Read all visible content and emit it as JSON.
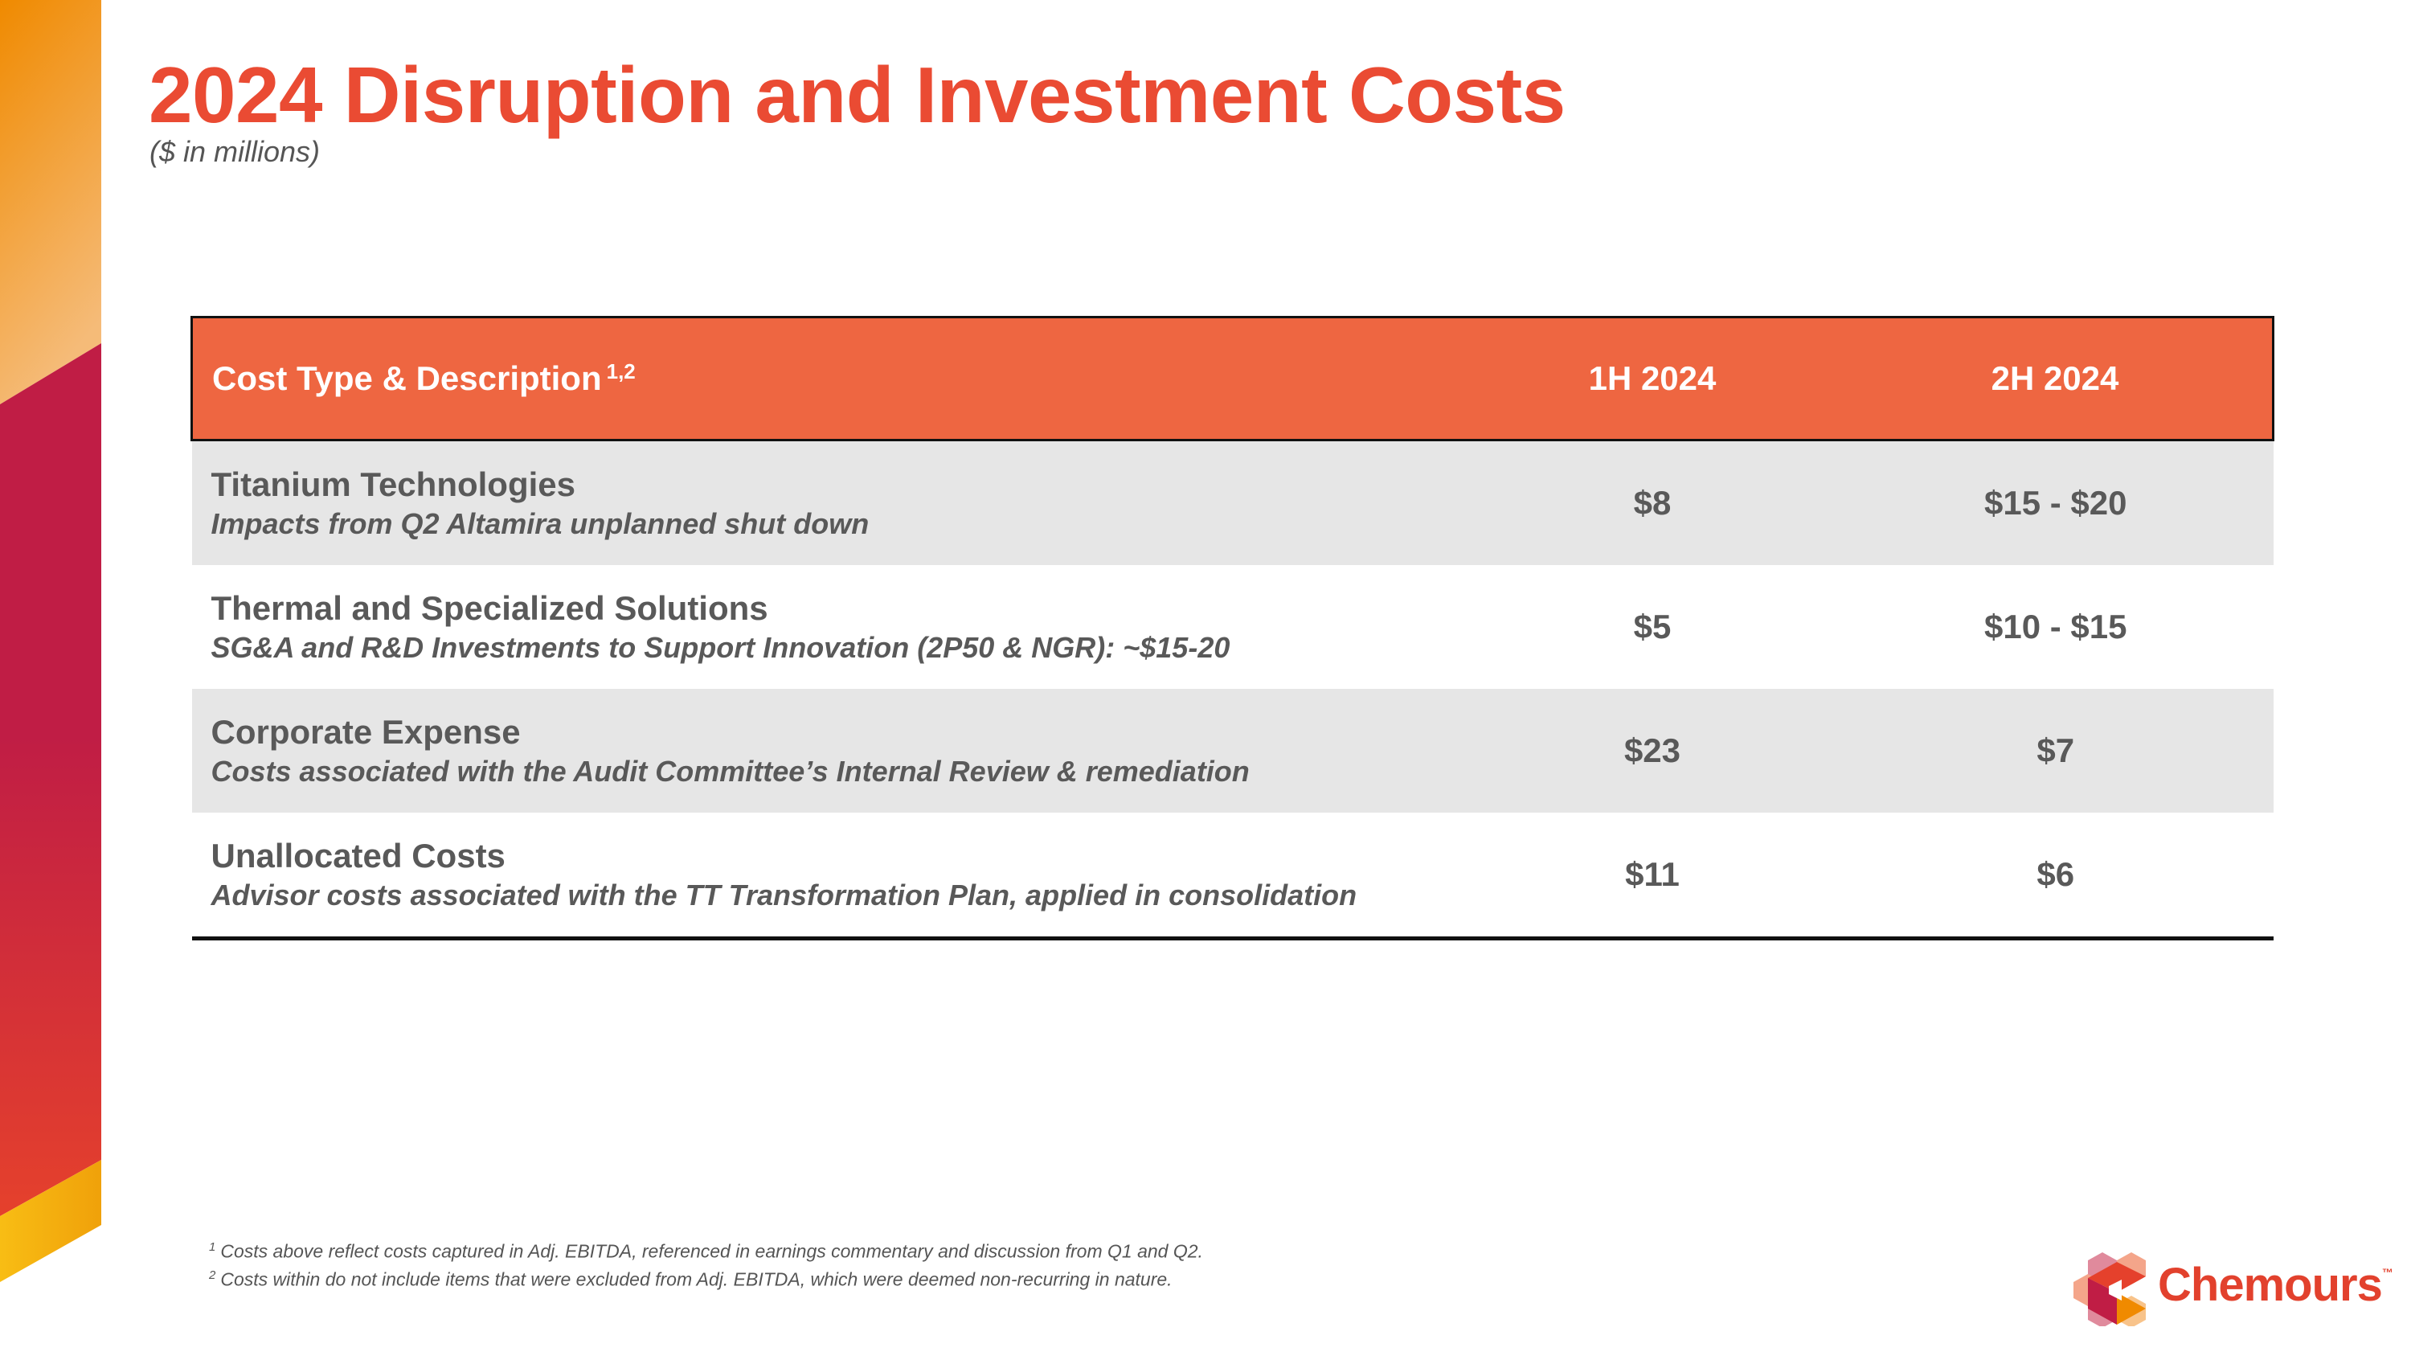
{
  "header": {
    "title": "2024 Disruption and Investment Costs",
    "subtitle": "($ in millions)"
  },
  "table": {
    "columns": [
      "Cost Type & Description",
      "1H 2024",
      "2H 2024"
    ],
    "header_footnote_refs": "1,2",
    "rows": [
      {
        "title": "Titanium Technologies",
        "description": "Impacts from Q2 Altamira unplanned shut down",
        "h1": "$8",
        "h2": "$15 - $20"
      },
      {
        "title": "Thermal and Specialized Solutions",
        "description": "SG&A and R&D Investments to Support Innovation (2P50 & NGR): ~$15-20",
        "h1": "$5",
        "h2": "$10 - $15"
      },
      {
        "title": "Corporate Expense",
        "description": "Costs associated with the Audit Committee’s Internal Review & remediation",
        "h1": "$23",
        "h2": "$7"
      },
      {
        "title": "Unallocated Costs",
        "description": "Advisor costs associated with the TT Transformation Plan, applied in consolidation",
        "h1": "$11",
        "h2": "$6"
      }
    ]
  },
  "footnotes": [
    {
      "num": "1",
      "text": "Costs above reflect costs captured in Adj. EBITDA, referenced in earnings commentary and discussion from Q1 and Q2."
    },
    {
      "num": "2",
      "text": "Costs within do not include items that were excluded from Adj. EBITDA, which were deemed non-recurring in nature."
    }
  ],
  "logo": {
    "text": "Chemours",
    "tm": "™"
  },
  "colors": {
    "accent": "#EA4B33",
    "header_bg": "#EE6641",
    "row_shade": "#E6E6E6",
    "strip_red": "#C01D45",
    "strip_orange": "#F08A00",
    "strip_yellow": "#F7B511"
  }
}
